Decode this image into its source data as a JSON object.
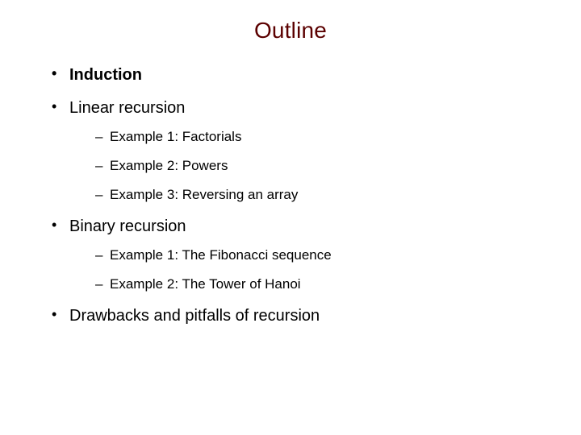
{
  "slide": {
    "title": "Outline",
    "title_color": "#5b0000",
    "background_color": "#ffffff",
    "title_fontsize": 28,
    "bullet_fontsize": 20,
    "sub_fontsize": 17,
    "items": [
      {
        "text": "Induction",
        "bold": true,
        "subitems": []
      },
      {
        "text": "Linear recursion",
        "bold": false,
        "subitems": [
          "Example 1: Factorials",
          "Example 2:  Powers",
          "Example 3: Reversing an array"
        ]
      },
      {
        "text": "Binary recursion",
        "bold": false,
        "subitems": [
          "Example 1:  The Fibonacci sequence",
          "Example 2:  The Tower of Hanoi"
        ]
      },
      {
        "text": "Drawbacks and pitfalls of recursion",
        "bold": false,
        "subitems": []
      }
    ]
  }
}
